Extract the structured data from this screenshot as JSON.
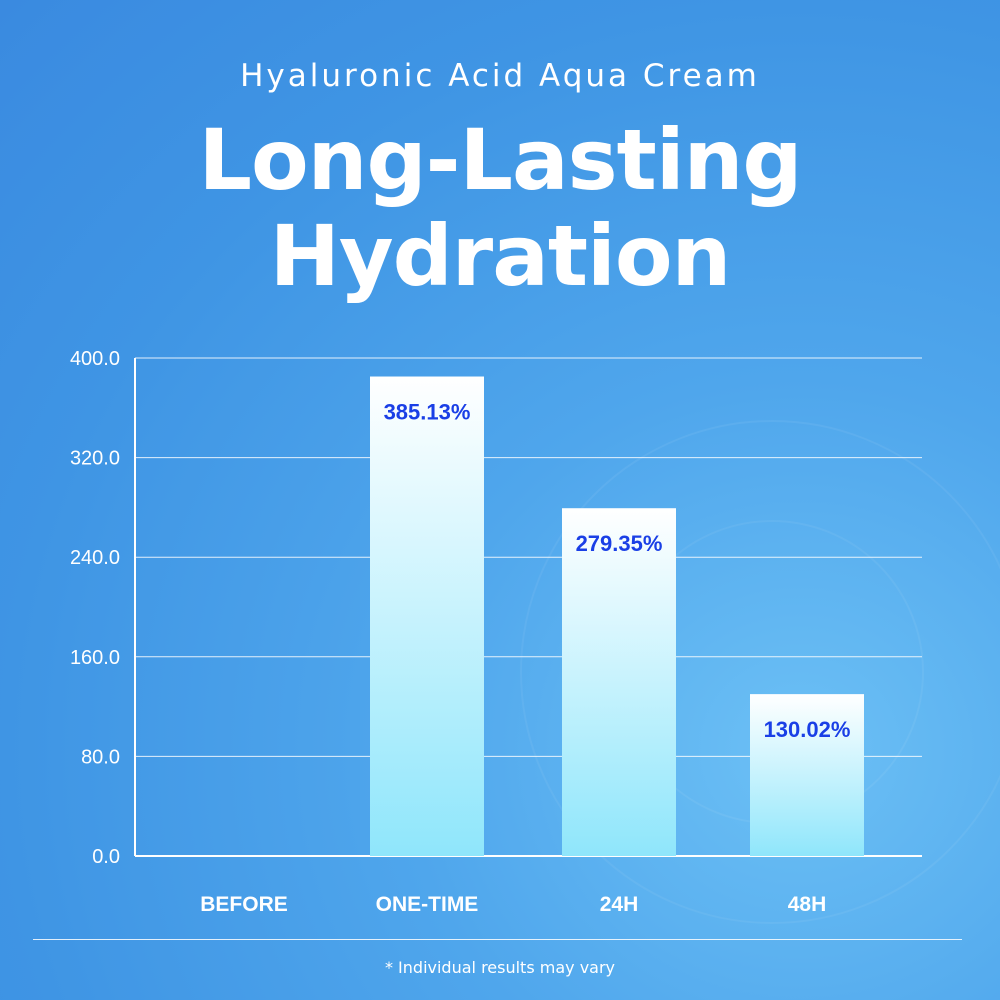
{
  "subtitle": "Hyaluronic Acid Aqua Cream",
  "title_line1": "Long-Lasting",
  "title_line2": "Hydration",
  "footnote": "* Individual results may vary",
  "chart_data": {
    "type": "bar",
    "categories": [
      "BEFORE",
      "ONE-TIME",
      "24H",
      "48H"
    ],
    "values": [
      null,
      385.13,
      279.35,
      130.02
    ],
    "data_labels": [
      "",
      "385.13%",
      "279.35%",
      "130.02%"
    ],
    "ylim": [
      0,
      400
    ],
    "yticks": [
      "0.0",
      "80.0",
      "160.0",
      "240.0",
      "320.0",
      "400.0"
    ],
    "grid": true,
    "xlabel": "",
    "ylabel": "",
    "colors": {
      "bar_top": "#ffffff",
      "bar_bottom": "#8fe6fb",
      "label": "#1a3fe6",
      "axis": "#ffffff"
    }
  }
}
